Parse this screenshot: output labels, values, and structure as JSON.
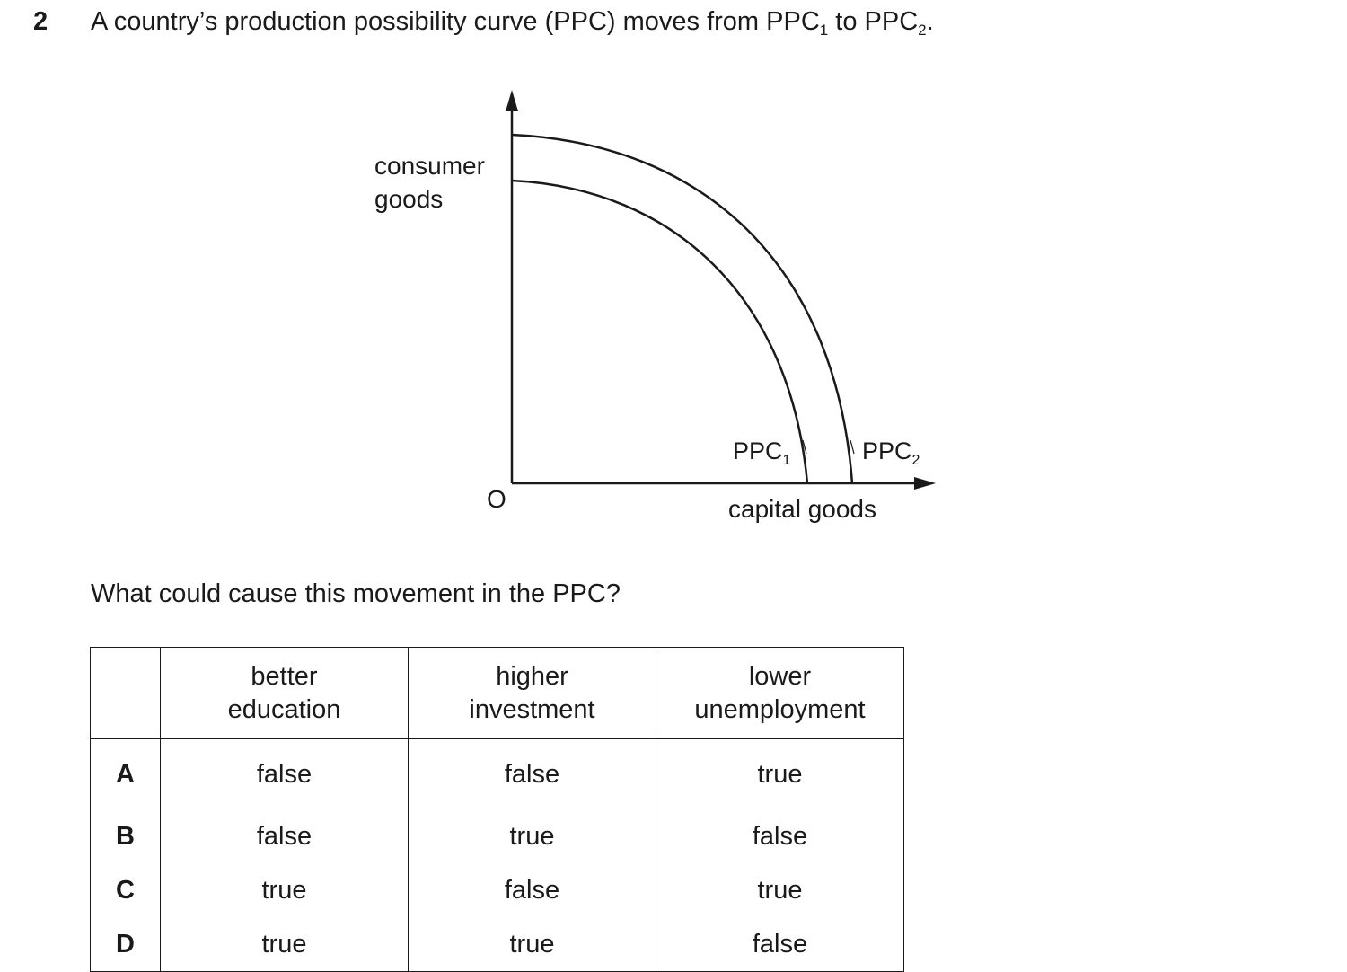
{
  "question": {
    "number": "2",
    "stem_text": "A country’s production possibility curve (PPC) moves from PPC",
    "stem_sub1": "1",
    "stem_mid": " to PPC",
    "stem_sub2": "2",
    "stem_end": ".",
    "prompt": "What could cause this movement in the PPC?"
  },
  "diagram": {
    "y_axis_label_line1": "consumer",
    "y_axis_label_line2": "goods",
    "x_axis_label": "capital goods",
    "origin_label": "O",
    "curve1_label": "PPC",
    "curve1_sub": "1",
    "curve2_label": "PPC",
    "curve2_sub": "2"
  },
  "table": {
    "headers": [
      [
        "",
        ""
      ],
      [
        "better",
        "education"
      ],
      [
        "higher",
        "investment"
      ],
      [
        "lower",
        "unemployment"
      ]
    ],
    "rows": [
      {
        "letter": "A",
        "values": [
          "false",
          "false",
          "true"
        ]
      },
      {
        "letter": "B",
        "values": [
          "false",
          "true",
          "false"
        ]
      },
      {
        "letter": "C",
        "values": [
          "true",
          "false",
          "true"
        ]
      },
      {
        "letter": "D",
        "values": [
          "true",
          "true",
          "false"
        ]
      }
    ]
  }
}
